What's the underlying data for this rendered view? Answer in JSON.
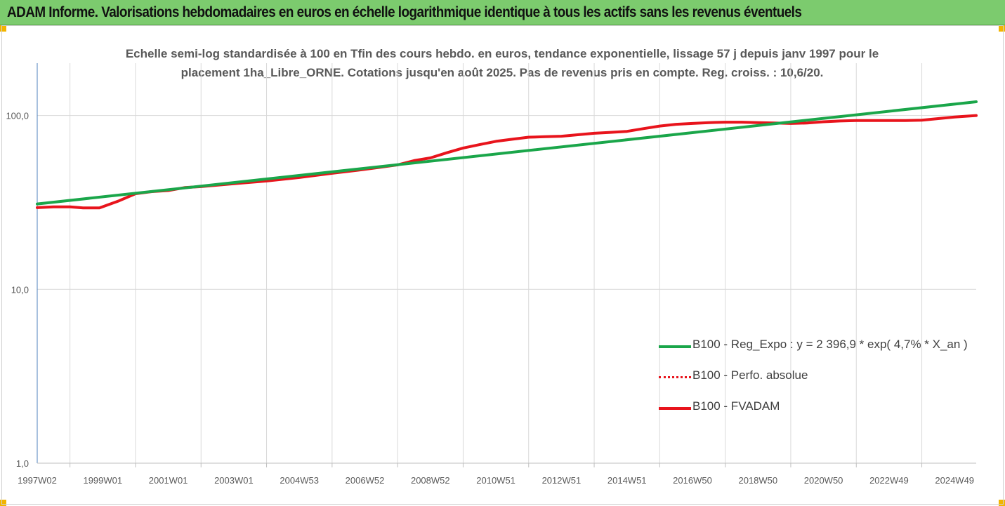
{
  "header": {
    "title": "ADAM Informe. Valorisations hebdomadaires en euros en échelle logarithmique identique à tous les actifs sans les revenus éventuels"
  },
  "colors": {
    "title_bar": "#7ccb6e",
    "handle": "#f2b400",
    "regression": "#1aa64a",
    "fvadam": "#e8141c",
    "perfo": "#e8141c",
    "axis": "#4f81bd",
    "grid": "#d9d9d9"
  },
  "chart_data": {
    "type": "line",
    "title_lines": [
      "Echelle semi-log standardisée à 100 en Tfin des cours hebdo. en euros, tendance exponentielle, lissage 57 j depuis janv 1997 pour le",
      "placement 1ha_Libre_ORNE. Cotations jusqu'en août 2025. Pas de revenus pris en compte. Reg. croiss. : 10,6/20."
    ],
    "y_scale": "log",
    "ylim": [
      1,
      200
    ],
    "y_ticks": [
      {
        "value": 100,
        "label": "100,0"
      },
      {
        "value": 10,
        "label": "10,0"
      },
      {
        "value": 1,
        "label": "1,0"
      }
    ],
    "x_range": [
      1997.0,
      2025.66
    ],
    "x_ticks": [
      {
        "x": 1997.0,
        "label": "1997W02"
      },
      {
        "x": 1999.0,
        "label": "1999W01"
      },
      {
        "x": 2001.0,
        "label": "2001W01"
      },
      {
        "x": 2003.0,
        "label": "2003W01"
      },
      {
        "x": 2005.0,
        "label": "2004W53"
      },
      {
        "x": 2007.0,
        "label": "2006W52"
      },
      {
        "x": 2009.0,
        "label": "2008W52"
      },
      {
        "x": 2011.0,
        "label": "2010W51"
      },
      {
        "x": 2013.0,
        "label": "2012W51"
      },
      {
        "x": 2015.0,
        "label": "2014W51"
      },
      {
        "x": 2017.0,
        "label": "2016W50"
      },
      {
        "x": 2019.0,
        "label": "2018W50"
      },
      {
        "x": 2021.0,
        "label": "2020W50"
      },
      {
        "x": 2023.0,
        "label": "2022W49"
      },
      {
        "x": 2025.0,
        "label": "2024W49"
      }
    ],
    "grid": true,
    "legend_position": "bottom-right",
    "series": [
      {
        "name": "B100 - Reg_Expo : y = 2 396,9 * exp( 4,7% *  X_an )",
        "style": "solid",
        "x": [
          1997.0,
          2025.66
        ],
        "y": [
          31.0,
          120.0
        ]
      },
      {
        "name": "B100 - Perfo. absolue",
        "style": "dotted",
        "x": [
          1997.0,
          1997.5,
          1998.0,
          1998.4,
          1998.9,
          1999.5,
          2000.0,
          2000.5,
          2001.0,
          2001.5,
          2002.0,
          2003.0,
          2004.0,
          2005.0,
          2006.0,
          2007.0,
          2007.5,
          2008.0,
          2008.5,
          2009.0,
          2009.5,
          2010.0,
          2010.5,
          2011.0,
          2011.5,
          2012.0,
          2012.5,
          2013.0,
          2013.5,
          2014.0,
          2014.5,
          2015.0,
          2015.5,
          2016.0,
          2016.5,
          2017.0,
          2017.5,
          2018.0,
          2018.5,
          2019.0,
          2019.5,
          2020.0,
          2020.5,
          2021.0,
          2021.5,
          2022.0,
          2022.5,
          2023.0,
          2023.5,
          2024.0,
          2024.5,
          2025.0,
          2025.66
        ],
        "y": [
          29.5,
          29.8,
          29.8,
          29.4,
          29.4,
          32.3,
          35.5,
          36.5,
          37.0,
          38.5,
          39.0,
          40.5,
          42.0,
          44.0,
          46.5,
          49.0,
          50.5,
          52.0,
          55.0,
          57.0,
          61.0,
          65.0,
          68.0,
          71.0,
          73.0,
          75.0,
          75.5,
          76.0,
          77.5,
          79.0,
          80.0,
          81.0,
          84.0,
          87.0,
          89.0,
          90.0,
          91.0,
          91.5,
          91.5,
          91.0,
          90.5,
          90.0,
          90.5,
          92.0,
          93.0,
          93.5,
          93.5,
          93.5,
          93.5,
          94.0,
          96.0,
          98.0,
          100.0
        ]
      },
      {
        "name": "B100 - FVADAM",
        "style": "solid",
        "x": [
          1997.0,
          1997.5,
          1998.0,
          1998.4,
          1998.9,
          1999.5,
          2000.0,
          2000.5,
          2001.0,
          2001.5,
          2002.0,
          2003.0,
          2004.0,
          2005.0,
          2006.0,
          2007.0,
          2007.5,
          2008.0,
          2008.5,
          2009.0,
          2009.5,
          2010.0,
          2010.5,
          2011.0,
          2011.5,
          2012.0,
          2012.5,
          2013.0,
          2013.5,
          2014.0,
          2014.5,
          2015.0,
          2015.5,
          2016.0,
          2016.5,
          2017.0,
          2017.5,
          2018.0,
          2018.5,
          2019.0,
          2019.5,
          2020.0,
          2020.5,
          2021.0,
          2021.5,
          2022.0,
          2022.5,
          2023.0,
          2023.5,
          2024.0,
          2024.5,
          2025.0,
          2025.66
        ],
        "y": [
          29.5,
          29.8,
          29.8,
          29.4,
          29.4,
          32.3,
          35.5,
          36.5,
          37.0,
          38.5,
          39.0,
          40.5,
          42.0,
          44.0,
          46.5,
          49.0,
          50.5,
          52.0,
          55.0,
          57.0,
          61.0,
          65.0,
          68.0,
          71.0,
          73.0,
          75.0,
          75.5,
          76.0,
          77.5,
          79.0,
          80.0,
          81.0,
          84.0,
          87.0,
          89.0,
          90.0,
          91.0,
          91.5,
          91.5,
          91.0,
          90.5,
          90.0,
          90.5,
          92.0,
          93.0,
          93.5,
          93.5,
          93.5,
          93.5,
          94.0,
          96.0,
          98.0,
          100.0
        ]
      }
    ]
  }
}
